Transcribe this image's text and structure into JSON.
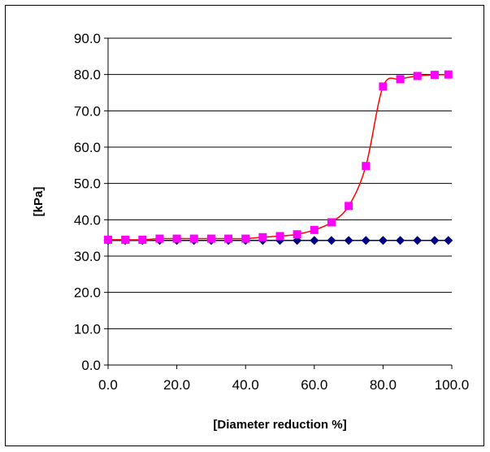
{
  "chart_data": {
    "type": "line",
    "title": "",
    "xlabel": "[Diameter reduction %]",
    "ylabel": "[kPa]",
    "xlim": [
      0,
      100
    ],
    "ylim": [
      0,
      90
    ],
    "x_ticks": [
      "0.0",
      "20.0",
      "40.0",
      "60.0",
      "80.0",
      "100.0"
    ],
    "y_ticks": [
      "0.0",
      "10.0",
      "20.0",
      "30.0",
      "40.0",
      "50.0",
      "60.0",
      "70.0",
      "80.0",
      "90.0"
    ],
    "grid": "horizontal",
    "legend": "none",
    "x": [
      0,
      5,
      10,
      15,
      20,
      25,
      30,
      35,
      40,
      45,
      50,
      55,
      60,
      65,
      70,
      75,
      80,
      85,
      90,
      95,
      99
    ],
    "series": [
      {
        "marker": "diamond",
        "color": "#000080",
        "line_color": "#000080",
        "values": [
          34.3,
          34.3,
          34.3,
          34.3,
          34.3,
          34.3,
          34.3,
          34.3,
          34.3,
          34.3,
          34.3,
          34.3,
          34.3,
          34.3,
          34.3,
          34.3,
          34.3,
          34.3,
          34.3,
          34.3,
          34.3
        ]
      },
      {
        "marker": "square",
        "color": "#ff00ff",
        "line_color": "#ff0000",
        "values": [
          34.5,
          34.5,
          34.5,
          34.8,
          34.8,
          34.8,
          34.8,
          34.8,
          34.8,
          35.2,
          35.5,
          36.0,
          37.2,
          39.3,
          43.8,
          54.8,
          76.7,
          78.7,
          79.6,
          79.9,
          80.0
        ]
      }
    ]
  }
}
